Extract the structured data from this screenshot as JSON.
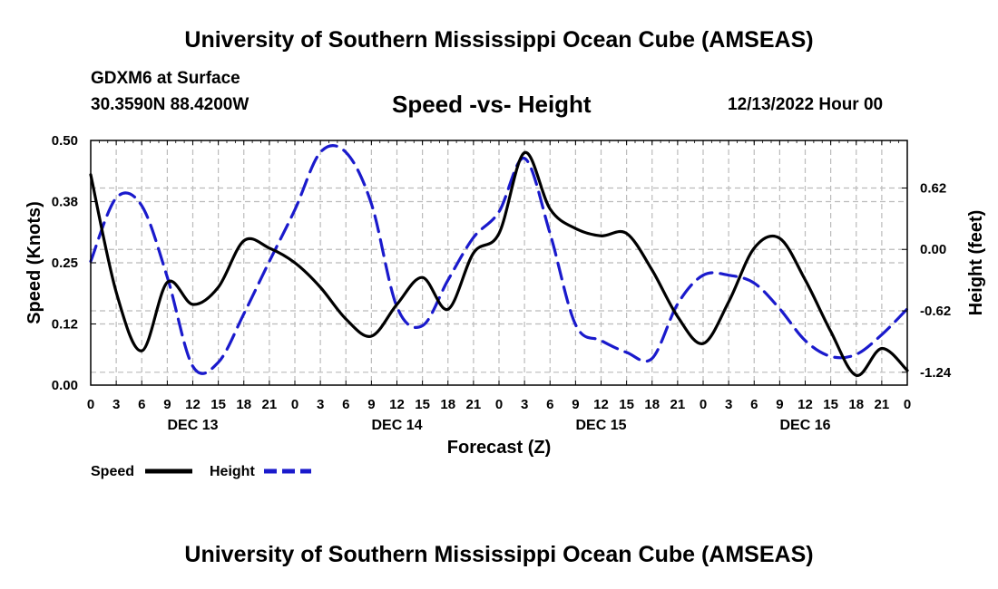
{
  "header": {
    "title": "University of Southern Mississippi Ocean Cube (AMSEAS)",
    "model": "GDXM6 at Surface",
    "coords": "30.3590N  88.4200W",
    "subtitle": "Speed -vs- Height",
    "datetime": "12/13/2022 Hour 00"
  },
  "footer": {
    "title": "University of Southern Mississippi Ocean Cube (AMSEAS)"
  },
  "chart_data": {
    "type": "line",
    "title": "Speed -vs- Height",
    "xlabel": "Forecast (Z)",
    "ylabel": "Speed (Knots)",
    "y2label": "Height (feet)",
    "xlim": [
      0,
      96
    ],
    "ylim": [
      0,
      0.5
    ],
    "y2lim": [
      -1.37,
      1.1
    ],
    "x_ticks": [
      0,
      3,
      6,
      9,
      12,
      15,
      18,
      21,
      24,
      27,
      30,
      33,
      36,
      39,
      42,
      45,
      48,
      51,
      54,
      57,
      60,
      63,
      66,
      69,
      72,
      75,
      78,
      81,
      84,
      87,
      90,
      93,
      96
    ],
    "x_tick_labels": [
      "0",
      "3",
      "6",
      "9",
      "12",
      "15",
      "18",
      "21",
      "0",
      "3",
      "6",
      "9",
      "12",
      "15",
      "18",
      "21",
      "0",
      "3",
      "6",
      "9",
      "12",
      "15",
      "18",
      "21",
      "0",
      "3",
      "6",
      "9",
      "12",
      "15",
      "18",
      "21",
      "0"
    ],
    "day_labels": [
      {
        "x": 12,
        "label": "DEC 13"
      },
      {
        "x": 36,
        "label": "DEC 14"
      },
      {
        "x": 60,
        "label": "DEC 15"
      },
      {
        "x": 84,
        "label": "DEC 16"
      }
    ],
    "y_ticks": [
      0.0,
      0.125,
      0.25,
      0.375,
      0.5
    ],
    "y_tick_labels": [
      "0.00",
      "0.12",
      "0.25",
      "0.38",
      "0.50"
    ],
    "y2_ticks": [
      0.62,
      0.0,
      -0.62,
      -1.24
    ],
    "y2_tick_labels": [
      "0.62",
      "0.00",
      "-0.62",
      "-1.24"
    ],
    "grid": true,
    "series": [
      {
        "name": "Speed",
        "axis": "left",
        "color": "#000000",
        "dash": "solid",
        "x": [
          0,
          3,
          6,
          9,
          12,
          15,
          18,
          21,
          24,
          27,
          30,
          33,
          36,
          39,
          42,
          45,
          48,
          51,
          54,
          57,
          60,
          63,
          66,
          69,
          72,
          75,
          78,
          81,
          84,
          87,
          90,
          93,
          96
        ],
        "values": [
          0.43,
          0.19,
          0.07,
          0.21,
          0.165,
          0.2,
          0.295,
          0.28,
          0.25,
          0.2,
          0.135,
          0.1,
          0.165,
          0.22,
          0.155,
          0.27,
          0.31,
          0.475,
          0.36,
          0.32,
          0.305,
          0.31,
          0.235,
          0.14,
          0.085,
          0.17,
          0.28,
          0.3,
          0.215,
          0.11,
          0.02,
          0.075,
          0.03
        ]
      },
      {
        "name": "Height",
        "axis": "right",
        "color": "#1a1acc",
        "dash": "dashed",
        "x": [
          0,
          3,
          6,
          9,
          12,
          15,
          18,
          21,
          24,
          27,
          30,
          33,
          36,
          39,
          42,
          45,
          48,
          51,
          54,
          57,
          60,
          63,
          66,
          69,
          72,
          75,
          78,
          81,
          84,
          87,
          90,
          93,
          96
        ],
        "values": [
          -0.12,
          0.52,
          0.44,
          -0.28,
          -1.18,
          -1.14,
          -0.65,
          -0.12,
          0.4,
          0.98,
          0.98,
          0.46,
          -0.58,
          -0.77,
          -0.31,
          0.12,
          0.38,
          0.92,
          0.16,
          -0.76,
          -0.92,
          -1.04,
          -1.1,
          -0.55,
          -0.26,
          -0.26,
          -0.34,
          -0.6,
          -0.92,
          -1.08,
          -1.06,
          -0.86,
          -0.6
        ]
      }
    ],
    "legend": {
      "position": "bottom-left",
      "items": [
        "Speed",
        "Height"
      ]
    }
  }
}
